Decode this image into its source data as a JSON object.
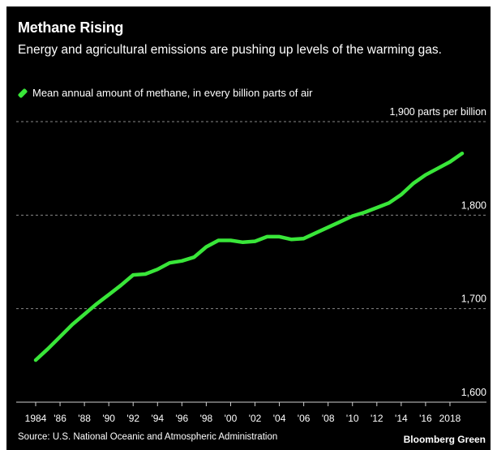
{
  "header": {
    "title": "Methane Rising",
    "subtitle": "Energy and agricultural emissions are pushing up levels of the warming gas."
  },
  "legend": {
    "label": "Mean annual amount of methane, in every billion parts of air"
  },
  "footer": {
    "source": "Source: U.S. National Oceanic and Atmospheric Administration",
    "brand": "Bloomberg Green"
  },
  "colors": {
    "line": "#39e639",
    "background": "#000000",
    "grid": "#888888",
    "text": "#ffffff"
  },
  "chart_data": {
    "type": "line",
    "title": "Methane Rising",
    "subtitle": "Energy and agricultural emissions are pushing up levels of the warming gas.",
    "x": [
      1984,
      1985,
      1986,
      1987,
      1988,
      1989,
      1990,
      1991,
      1992,
      1993,
      1994,
      1995,
      1996,
      1997,
      1998,
      1999,
      2000,
      2001,
      2002,
      2003,
      2004,
      2005,
      2006,
      2007,
      2008,
      2009,
      2010,
      2011,
      2012,
      2013,
      2014,
      2015,
      2016,
      2017,
      2018,
      2019
    ],
    "series": [
      {
        "name": "Mean annual amount of methane, in every billion parts of air",
        "values": [
          1645,
          1657,
          1670,
          1683,
          1694,
          1705,
          1715,
          1725,
          1736,
          1737,
          1742,
          1749,
          1751,
          1755,
          1766,
          1773,
          1773,
          1771,
          1772,
          1777,
          1777,
          1774,
          1775,
          1781,
          1787,
          1793,
          1799,
          1803,
          1808,
          1813,
          1822,
          1834,
          1843,
          1850,
          1857,
          1866
        ]
      }
    ],
    "x_tick_labels": [
      {
        "x": 1984,
        "label": "1984"
      },
      {
        "x": 1986,
        "label": "'86"
      },
      {
        "x": 1988,
        "label": "'88"
      },
      {
        "x": 1990,
        "label": "'90"
      },
      {
        "x": 1992,
        "label": "'92"
      },
      {
        "x": 1994,
        "label": "'94"
      },
      {
        "x": 1996,
        "label": "'96"
      },
      {
        "x": 1998,
        "label": "'98"
      },
      {
        "x": 2000,
        "label": "'00"
      },
      {
        "x": 2002,
        "label": "'02"
      },
      {
        "x": 2004,
        "label": "'04"
      },
      {
        "x": 2006,
        "label": "'06"
      },
      {
        "x": 2008,
        "label": "'08"
      },
      {
        "x": 2010,
        "label": "'10"
      },
      {
        "x": 2012,
        "label": "'12"
      },
      {
        "x": 2014,
        "label": "'14"
      },
      {
        "x": 2016,
        "label": "'16"
      },
      {
        "x": 2018,
        "label": "2018"
      }
    ],
    "y_ticks": [
      {
        "value": 1600,
        "label": "1,600"
      },
      {
        "value": 1700,
        "label": "1,700"
      },
      {
        "value": 1800,
        "label": "1,800"
      },
      {
        "value": 1900,
        "label": "1,900 parts per billion"
      }
    ],
    "xlim": [
      1983,
      2020
    ],
    "ylim": [
      1600,
      1900
    ],
    "grid": true,
    "legend_position": "top-left",
    "xlabel": "",
    "ylabel": ""
  }
}
